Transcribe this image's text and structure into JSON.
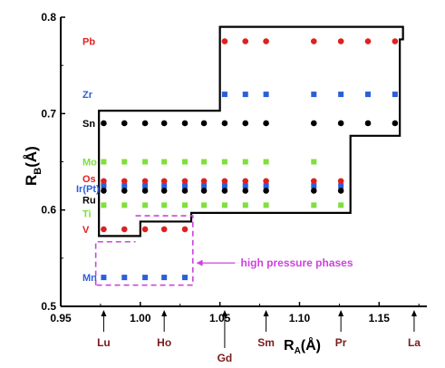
{
  "chart_data": {
    "type": "scatter",
    "xlabel_main": "R",
    "xlabel_sub": "A",
    "xlabel_unit": "(Å)",
    "ylabel_main": "R",
    "ylabel_sub": "B",
    "ylabel_unit": "(Å)",
    "xlim": [
      0.95,
      1.18
    ],
    "ylim": [
      0.5,
      0.8
    ],
    "xticks": [
      "0.95",
      "1.00",
      "1.05",
      "1.10",
      "1.15"
    ],
    "xtick_values": [
      0.95,
      1.0,
      1.05,
      1.1,
      1.15
    ],
    "yticks": [
      "0.5",
      "0.6",
      "0.7",
      "0.8"
    ],
    "ytick_values": [
      0.5,
      0.6,
      0.7,
      0.8
    ],
    "a_site_labels": [
      {
        "text": "Lu",
        "x": 0.977,
        "color": "#7b1a1a"
      },
      {
        "text": "Ho",
        "x": 1.015,
        "color": "#7b1a1a"
      },
      {
        "text": "Gd",
        "x": 1.053,
        "color": "#7b1a1a"
      },
      {
        "text": "Sm",
        "x": 1.079,
        "color": "#7b1a1a"
      },
      {
        "text": "Pr",
        "x": 1.126,
        "color": "#7b1a1a"
      },
      {
        "text": "La",
        "x": 1.172,
        "color": "#7b1a1a"
      }
    ],
    "b_site_labels": [
      {
        "text": "Pb",
        "y": 0.775,
        "color": "#e02020"
      },
      {
        "text": "Zr",
        "y": 0.72,
        "color": "#2b5fd9"
      },
      {
        "text": "Sn",
        "y": 0.69,
        "color": "#000000"
      },
      {
        "text": "Mo",
        "y": 0.65,
        "color": "#7ee03a"
      },
      {
        "text": "Os",
        "y": 0.63,
        "color": "#e02020"
      },
      {
        "text": "Ir(Pt)",
        "y": 0.625,
        "color": "#2b5fd9"
      },
      {
        "text": "Ru",
        "y": 0.62,
        "color": "#000000"
      },
      {
        "text": "Ti",
        "y": 0.605,
        "color": "#7ee03a"
      },
      {
        "text": "V",
        "y": 0.58,
        "color": "#e02020"
      },
      {
        "text": "Mn",
        "y": 0.53,
        "color": "#2b5fd9"
      }
    ],
    "series": [
      {
        "element": "Pb",
        "marker": "circle",
        "color": "#e02020",
        "y": 0.775,
        "x": [
          1.053,
          1.066,
          1.079,
          1.109,
          1.126,
          1.143,
          1.16
        ]
      },
      {
        "element": "Zr",
        "marker": "square",
        "color": "#2b5fd9",
        "y": 0.72,
        "x": [
          1.053,
          1.066,
          1.079,
          1.109,
          1.126,
          1.143,
          1.16
        ]
      },
      {
        "element": "Sn",
        "marker": "circle",
        "color": "#000000",
        "y": 0.69,
        "x": [
          0.977,
          0.99,
          1.003,
          1.015,
          1.028,
          1.04,
          1.053,
          1.066,
          1.079,
          1.109,
          1.126,
          1.143,
          1.16
        ]
      },
      {
        "element": "Mo",
        "marker": "square",
        "color": "#7ee03a",
        "y": 0.65,
        "x": [
          0.977,
          0.99,
          1.003,
          1.015,
          1.028,
          1.04,
          1.053,
          1.066,
          1.079,
          1.109
        ]
      },
      {
        "element": "Os",
        "marker": "circle",
        "color": "#e02020",
        "y": 0.63,
        "x": [
          0.977,
          0.99,
          1.003,
          1.015,
          1.028,
          1.04,
          1.053,
          1.066,
          1.079,
          1.109,
          1.126
        ]
      },
      {
        "element": "Ir(Pt)",
        "marker": "square",
        "color": "#2b5fd9",
        "y": 0.625,
        "x": [
          0.977,
          0.99,
          1.003,
          1.015,
          1.028,
          1.04,
          1.053,
          1.066,
          1.079,
          1.109,
          1.126
        ]
      },
      {
        "element": "Ru",
        "marker": "circle",
        "color": "#000000",
        "y": 0.62,
        "x": [
          0.977,
          0.99,
          1.003,
          1.015,
          1.028,
          1.04,
          1.053,
          1.066,
          1.079,
          1.109,
          1.126
        ]
      },
      {
        "element": "Ti",
        "marker": "square",
        "color": "#7ee03a",
        "y": 0.605,
        "x": [
          0.977,
          0.99,
          1.003,
          1.015,
          1.028,
          1.04,
          1.053,
          1.066,
          1.079,
          1.109,
          1.126
        ]
      },
      {
        "element": "V",
        "marker": "circle",
        "color": "#e02020",
        "y": 0.58,
        "x": [
          0.977,
          0.99,
          1.003,
          1.015,
          1.028
        ]
      },
      {
        "element": "Mn",
        "marker": "square",
        "color": "#2b5fd9",
        "y": 0.53,
        "x": [
          0.977,
          0.99,
          1.003,
          1.015,
          1.028
        ]
      }
    ],
    "stability_region": {
      "color": "#000000",
      "points": [
        [
          0.974,
          0.573
        ],
        [
          0.974,
          0.703
        ],
        [
          1.05,
          0.703
        ],
        [
          1.05,
          0.79
        ],
        [
          1.165,
          0.79
        ],
        [
          1.165,
          0.777
        ],
        [
          1.163,
          0.777
        ],
        [
          1.163,
          0.677
        ],
        [
          1.132,
          0.677
        ],
        [
          1.132,
          0.597
        ],
        [
          1.032,
          0.597
        ],
        [
          1.032,
          0.588
        ],
        [
          1.0,
          0.588
        ],
        [
          1.0,
          0.573
        ]
      ]
    },
    "high_pressure_region": {
      "color": "#cc44dd",
      "label": "high pressure phases",
      "points": [
        [
          0.972,
          0.522
        ],
        [
          0.972,
          0.567
        ],
        [
          0.997,
          0.567
        ]
      ],
      "points_b": [
        [
          0.997,
          0.594
        ],
        [
          1.033,
          0.594
        ],
        [
          1.033,
          0.522
        ],
        [
          0.972,
          0.522
        ]
      ],
      "arrow_to_x": 1.034,
      "arrow_y": 0.545,
      "label_x": 1.063
    }
  }
}
